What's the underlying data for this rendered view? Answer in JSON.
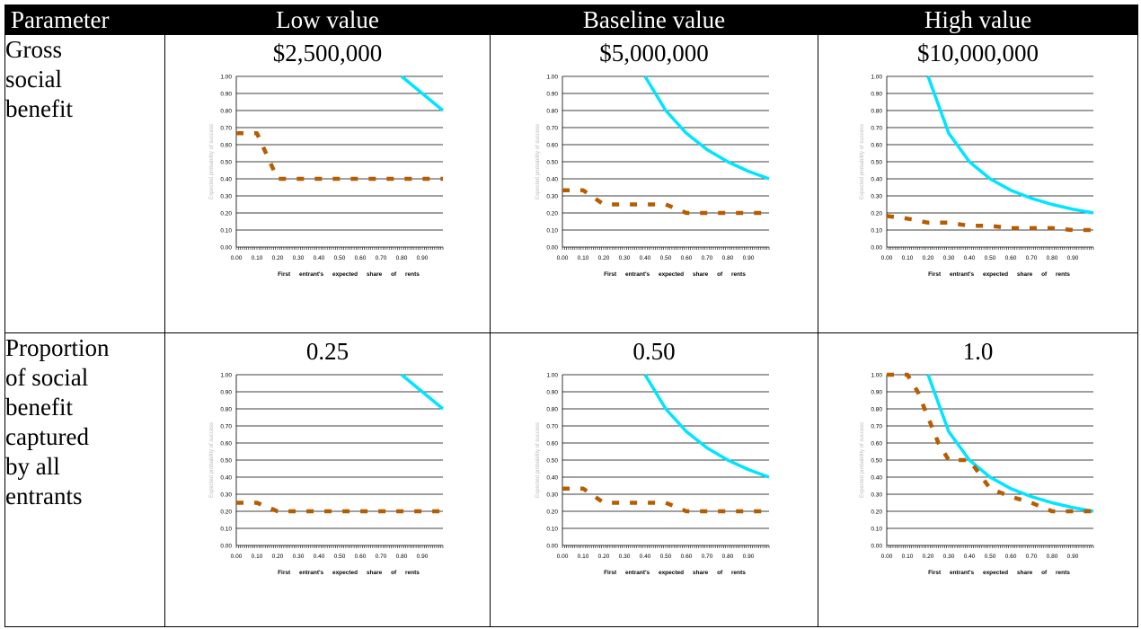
{
  "table": {
    "headers": [
      "Parameter",
      "Low value",
      "Baseline value",
      "High value"
    ],
    "rows": [
      {
        "param_lines": [
          "Gross",
          "social",
          "benefit"
        ],
        "cells": [
          {
            "value": "$2,500,000"
          },
          {
            "value": "$5,000,000"
          },
          {
            "value": "$10,000,000"
          }
        ]
      },
      {
        "param_lines": [
          "Proportion",
          "of social",
          "benefit",
          "captured",
          "by all",
          "entrants"
        ],
        "cells": [
          {
            "value": "0.25"
          },
          {
            "value": "0.50"
          },
          {
            "value": "1.0"
          }
        ]
      }
    ]
  },
  "chart_data": [
    {
      "type": "line",
      "xlabel": "First entrant's expected share of rents",
      "ylabel": "Expected probability of success",
      "ylim": [
        0,
        1
      ],
      "xlim": [
        0,
        1
      ],
      "yticks": [
        "0.00",
        "0.10",
        "0.20",
        "0.30",
        "0.40",
        "0.50",
        "0.60",
        "0.70",
        "0.80",
        "0.90",
        "1.00"
      ],
      "xticks": [
        "0.00",
        "0.10",
        "0.20",
        "0.30",
        "0.40",
        "0.50",
        "0.60",
        "0.70",
        "0.80",
        "0.90"
      ],
      "grid": "horizontal",
      "series": [
        {
          "color": "#00e5ff",
          "style": "solid",
          "x": [
            0.2,
            0.3,
            0.4,
            0.5,
            0.6,
            0.7,
            0.8,
            0.9,
            1.0
          ],
          "y": [
            null,
            null,
            null,
            null,
            null,
            null,
            1.0,
            0.9,
            0.8
          ]
        },
        {
          "color": "#b85c00",
          "style": "dashed",
          "x": [
            0.0,
            0.1,
            0.2,
            0.3,
            0.4,
            0.5,
            0.6,
            0.7,
            0.8,
            0.9,
            1.0
          ],
          "y": [
            0.667,
            0.667,
            0.4,
            0.4,
            0.4,
            0.4,
            0.4,
            0.4,
            0.4,
            0.4,
            0.4
          ]
        }
      ]
    },
    {
      "type": "line",
      "xlabel": "First entrant's expected share of rents",
      "ylabel": "Expected probability of success",
      "ylim": [
        0,
        1
      ],
      "xlim": [
        0,
        1
      ],
      "yticks": [
        "0.00",
        "0.10",
        "0.20",
        "0.30",
        "0.40",
        "0.50",
        "0.60",
        "0.70",
        "0.80",
        "0.90",
        "1.00"
      ],
      "xticks": [
        "0.00",
        "0.10",
        "0.20",
        "0.30",
        "0.40",
        "0.50",
        "0.60",
        "0.70",
        "0.80",
        "0.90"
      ],
      "grid": "horizontal",
      "series": [
        {
          "color": "#00e5ff",
          "style": "solid",
          "x": [
            0.4,
            0.5,
            0.6,
            0.7,
            0.8,
            0.9,
            1.0
          ],
          "y": [
            1.0,
            0.8,
            0.667,
            0.571,
            0.5,
            0.444,
            0.4
          ]
        },
        {
          "color": "#b85c00",
          "style": "dashed",
          "x": [
            0.0,
            0.1,
            0.2,
            0.3,
            0.4,
            0.5,
            0.6,
            0.7,
            0.8,
            0.9,
            1.0
          ],
          "y": [
            0.333,
            0.333,
            0.25,
            0.25,
            0.25,
            0.25,
            0.2,
            0.2,
            0.2,
            0.2,
            0.2
          ]
        }
      ]
    },
    {
      "type": "line",
      "xlabel": "First entrant's expected share of rents",
      "ylabel": "Expected probability of success",
      "ylim": [
        0,
        1
      ],
      "xlim": [
        0,
        1
      ],
      "yticks": [
        "0.00",
        "0.10",
        "0.20",
        "0.30",
        "0.40",
        "0.50",
        "0.60",
        "0.70",
        "0.80",
        "0.90",
        "1.00"
      ],
      "xticks": [
        "0.00",
        "0.10",
        "0.20",
        "0.30",
        "0.40",
        "0.50",
        "0.60",
        "0.70",
        "0.80",
        "0.90"
      ],
      "grid": "horizontal",
      "series": [
        {
          "color": "#00e5ff",
          "style": "solid",
          "x": [
            0.2,
            0.3,
            0.4,
            0.5,
            0.6,
            0.7,
            0.8,
            0.9,
            1.0
          ],
          "y": [
            1.0,
            0.667,
            0.5,
            0.4,
            0.333,
            0.286,
            0.25,
            0.222,
            0.2
          ]
        },
        {
          "color": "#b85c00",
          "style": "dashed",
          "x": [
            0.0,
            0.1,
            0.2,
            0.3,
            0.4,
            0.5,
            0.6,
            0.7,
            0.8,
            0.9,
            1.0
          ],
          "y": [
            0.182,
            0.167,
            0.143,
            0.143,
            0.125,
            0.125,
            0.111,
            0.111,
            0.111,
            0.1,
            0.1
          ]
        }
      ]
    },
    {
      "type": "line",
      "xlabel": "First entrant's expected share of rents",
      "ylabel": "Expected probability of success",
      "ylim": [
        0,
        1
      ],
      "xlim": [
        0,
        1
      ],
      "yticks": [
        "0.00",
        "0.10",
        "0.20",
        "0.30",
        "0.40",
        "0.50",
        "0.60",
        "0.70",
        "0.80",
        "0.90",
        "1.00"
      ],
      "xticks": [
        "0.00",
        "0.10",
        "0.20",
        "0.30",
        "0.40",
        "0.50",
        "0.60",
        "0.70",
        "0.80",
        "0.90"
      ],
      "grid": "horizontal",
      "series": [
        {
          "color": "#00e5ff",
          "style": "solid",
          "x": [
            0.8,
            0.9,
            1.0
          ],
          "y": [
            1.0,
            0.9,
            0.8
          ]
        },
        {
          "color": "#b85c00",
          "style": "dashed",
          "x": [
            0.0,
            0.1,
            0.2,
            0.3,
            0.4,
            0.5,
            0.6,
            0.7,
            0.8,
            0.9,
            1.0
          ],
          "y": [
            0.25,
            0.25,
            0.2,
            0.2,
            0.2,
            0.2,
            0.2,
            0.2,
            0.2,
            0.2,
            0.2
          ]
        }
      ]
    },
    {
      "type": "line",
      "xlabel": "First entrant's expected share of rents",
      "ylabel": "Expected probability of success",
      "ylim": [
        0,
        1
      ],
      "xlim": [
        0,
        1
      ],
      "yticks": [
        "0.00",
        "0.10",
        "0.20",
        "0.30",
        "0.40",
        "0.50",
        "0.60",
        "0.70",
        "0.80",
        "0.90",
        "1.00"
      ],
      "xticks": [
        "0.00",
        "0.10",
        "0.20",
        "0.30",
        "0.40",
        "0.50",
        "0.60",
        "0.70",
        "0.80",
        "0.90"
      ],
      "grid": "horizontal",
      "series": [
        {
          "color": "#00e5ff",
          "style": "solid",
          "x": [
            0.4,
            0.5,
            0.6,
            0.7,
            0.8,
            0.9,
            1.0
          ],
          "y": [
            1.0,
            0.8,
            0.667,
            0.571,
            0.5,
            0.444,
            0.4
          ]
        },
        {
          "color": "#b85c00",
          "style": "dashed",
          "x": [
            0.0,
            0.1,
            0.2,
            0.3,
            0.4,
            0.5,
            0.6,
            0.7,
            0.8,
            0.9,
            1.0
          ],
          "y": [
            0.333,
            0.333,
            0.25,
            0.25,
            0.25,
            0.25,
            0.2,
            0.2,
            0.2,
            0.2,
            0.2
          ]
        }
      ]
    },
    {
      "type": "line",
      "xlabel": "First entrant's expected share of rents",
      "ylabel": "Expected probability of success",
      "ylim": [
        0,
        1
      ],
      "xlim": [
        0,
        1
      ],
      "yticks": [
        "0.00",
        "0.10",
        "0.20",
        "0.30",
        "0.40",
        "0.50",
        "0.60",
        "0.70",
        "0.80",
        "0.90",
        "1.00"
      ],
      "xticks": [
        "0.00",
        "0.10",
        "0.20",
        "0.30",
        "0.40",
        "0.50",
        "0.60",
        "0.70",
        "0.80",
        "0.90"
      ],
      "grid": "horizontal",
      "series": [
        {
          "color": "#00e5ff",
          "style": "solid",
          "x": [
            0.2,
            0.3,
            0.4,
            0.5,
            0.6,
            0.7,
            0.8,
            0.9,
            1.0
          ],
          "y": [
            1.0,
            0.667,
            0.5,
            0.4,
            0.333,
            0.286,
            0.25,
            0.222,
            0.2
          ]
        },
        {
          "color": "#b85c00",
          "style": "dashed",
          "x": [
            0.0,
            0.1,
            0.15,
            0.2,
            0.25,
            0.3,
            0.4,
            0.5,
            0.6,
            0.7,
            0.8,
            0.9,
            1.0
          ],
          "y": [
            1.0,
            1.0,
            0.9,
            0.75,
            0.6,
            0.5,
            0.5,
            0.333,
            0.286,
            0.25,
            0.2,
            0.2,
            0.2
          ]
        }
      ]
    }
  ]
}
